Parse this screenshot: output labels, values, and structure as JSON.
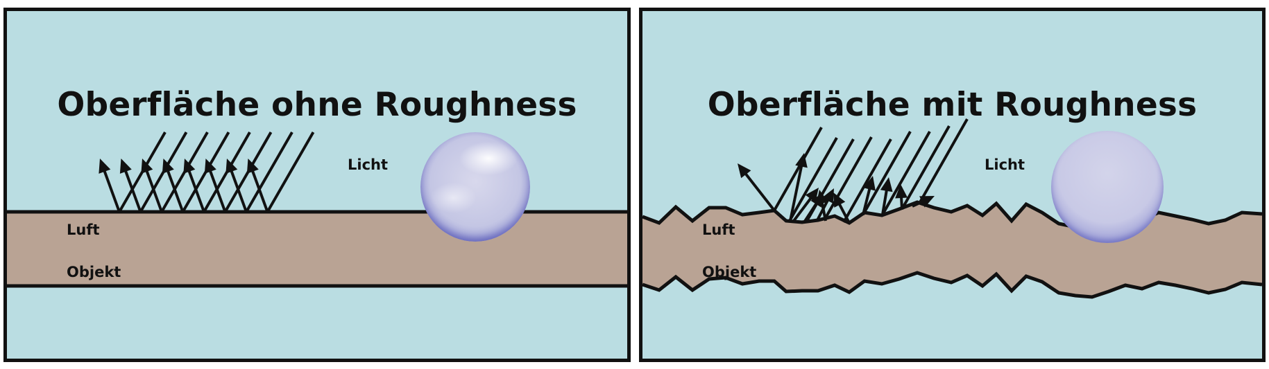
{
  "colors": {
    "air": "#badde2",
    "object": "#b9a394",
    "stroke": "#111111",
    "sphere_blue": "#4347b8"
  },
  "panels": [
    {
      "title": "Oberfläche ohne Roughness",
      "labels": {
        "light": "Licht",
        "air": "Luft",
        "object": "Objekt"
      },
      "surface": "smooth",
      "sphere": "glossy"
    },
    {
      "title": "Oberfläche mit Roughness",
      "labels": {
        "light": "Licht",
        "air": "Luft",
        "object": "Objekt"
      },
      "surface": "rough",
      "sphere": "matte"
    }
  ]
}
